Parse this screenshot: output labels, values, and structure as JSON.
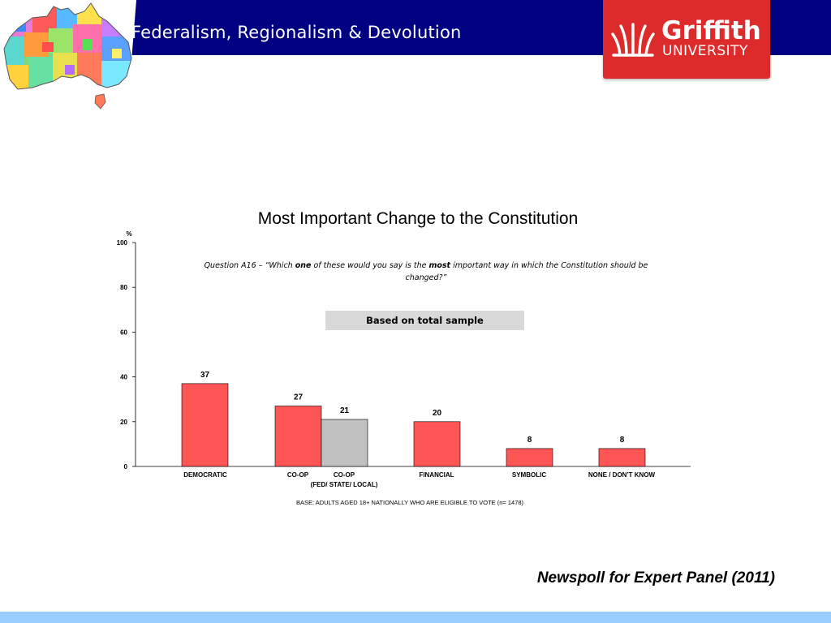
{
  "header": {
    "title": "Federalism, Regionalism & Devolution"
  },
  "logo": {
    "name": "Griffith",
    "subtitle": "UNIVERSITY",
    "icon": "griffith-flame-icon",
    "color": "#dd2a2a"
  },
  "map": {
    "icon": "australia-regions-map-icon"
  },
  "chart_data": {
    "type": "bar",
    "title": "Most Important Change to the Constitution",
    "ylabel": "%",
    "ylim": [
      0,
      100
    ],
    "yticks": [
      0,
      20,
      40,
      60,
      80,
      100
    ],
    "grid": false,
    "categories": [
      "DEMOCRATIC",
      "CO-OP",
      "CO-OP",
      "FINANCIAL",
      "SYMBOLIC",
      "NONE / DON’T KNOW"
    ],
    "category_sublabel": "(FED/ STATE/ LOCAL)",
    "values": [
      37,
      27,
      21,
      20,
      8,
      8
    ],
    "data_labels": [
      "37",
      "27",
      "21",
      "20",
      "8",
      "8"
    ],
    "colors": [
      "#ff5555",
      "#ff5555",
      "#c0c0c0",
      "#ff5555",
      "#ff5555",
      "#ff5555"
    ]
  },
  "question": {
    "prefix": "Question A16 – “Which ",
    "one": "one",
    "middle": " of these would you say is the ",
    "most": "most",
    "suffix": " important way in which the Constitution should be changed?”"
  },
  "sample_label": "Based on total sample",
  "base_note": "BASE: ADULTS AGED 18+ NATIONALLY WHO ARE ELIGIBLE TO VOTE (n= 1478)",
  "source": "Newspoll for Expert Panel (2011)"
}
